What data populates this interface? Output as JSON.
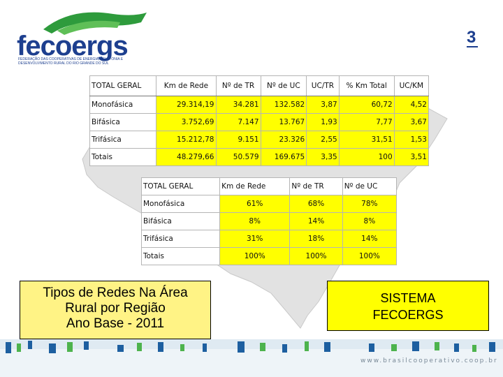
{
  "logo": {
    "name": "fecoergs",
    "subtitle": "FEDERAÇÃO DAS COOPERATIVAS DE ENERGIA, TELEFONIA E DESENVOLVIMENTO RURAL DO RIO GRANDE DO SUL",
    "corner_mark": "3"
  },
  "colors": {
    "highlight": "#ffff00",
    "caption_bg": "#fff385",
    "brand_blue": "#1d3f8f",
    "brand_green": "#2e9b3c"
  },
  "table1": {
    "headers": [
      "TOTAL GERAL",
      "Km de Rede",
      "Nº de TR",
      "Nº de UC",
      "UC/TR",
      "% Km Total",
      "UC/KM"
    ],
    "rows": [
      [
        "Monofásica",
        "29.314,19",
        "34.281",
        "132.582",
        "3,87",
        "60,72",
        "4,52"
      ],
      [
        "Bifásica",
        "3.752,69",
        "7.147",
        "13.767",
        "1,93",
        "7,77",
        "3,67"
      ],
      [
        "Trifásica",
        "15.212,78",
        "9.151",
        "23.326",
        "2,55",
        "31,51",
        "1,53"
      ],
      [
        "Totais",
        "48.279,66",
        "50.579",
        "169.675",
        "3,35",
        "100",
        "3,51"
      ]
    ]
  },
  "table2": {
    "headers": [
      "TOTAL GERAL",
      "Km de Rede",
      "Nº de TR",
      "Nº de UC"
    ],
    "rows": [
      [
        "Monofásica",
        "61%",
        "68%",
        "78%"
      ],
      [
        "Bifásica",
        "8%",
        "14%",
        "8%"
      ],
      [
        "Trifásica",
        "31%",
        "18%",
        "14%"
      ],
      [
        "Totais",
        "100%",
        "100%",
        "100%"
      ]
    ]
  },
  "caption_left": [
    "Tipos de Redes Na Área",
    "Rural por Região",
    "Ano Base - 2011"
  ],
  "caption_right": [
    "SISTEMA",
    "FECOERGS"
  ],
  "footer": {
    "url": "www.brasilcooperativo.coop.br"
  }
}
